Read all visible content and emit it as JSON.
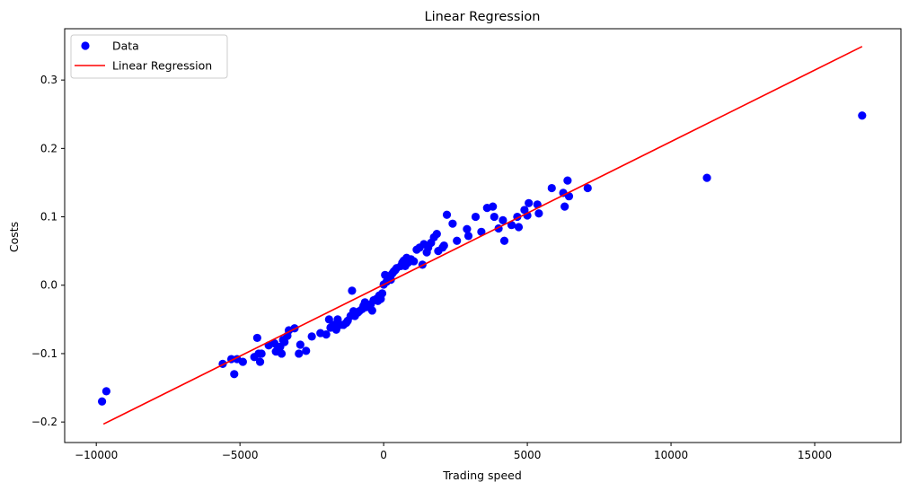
{
  "chart_data": {
    "type": "scatter",
    "title": "Linear Regression",
    "xlabel": "Trading speed",
    "ylabel": "Costs",
    "xlim": [
      -11100,
      18000
    ],
    "ylim": [
      -0.23,
      0.375
    ],
    "xticks": [
      -10000,
      -5000,
      0,
      5000,
      10000,
      15000
    ],
    "xtick_labels": [
      "−10000",
      "−5000",
      "0",
      "5000",
      "10000",
      "15000"
    ],
    "yticks": [
      -0.2,
      -0.1,
      0.0,
      0.1,
      0.2,
      0.3
    ],
    "ytick_labels": [
      "−0.2",
      "−0.1",
      "0.0",
      "0.1",
      "0.2",
      "0.3"
    ],
    "grid": false,
    "legend": {
      "position": "top-left",
      "entries": [
        {
          "label": "Data",
          "kind": "marker",
          "color": "#0000ff"
        },
        {
          "label": "Linear Regression",
          "kind": "line",
          "color": "#ff0000"
        }
      ]
    },
    "series": [
      {
        "name": "Data",
        "kind": "scatter",
        "color": "#0000ff",
        "points": [
          [
            -9800,
            -0.17
          ],
          [
            -9650,
            -0.155
          ],
          [
            -5600,
            -0.115
          ],
          [
            -5300,
            -0.108
          ],
          [
            -5200,
            -0.13
          ],
          [
            -5100,
            -0.108
          ],
          [
            -4900,
            -0.112
          ],
          [
            -4500,
            -0.105
          ],
          [
            -4350,
            -0.1
          ],
          [
            -4400,
            -0.077
          ],
          [
            -4300,
            -0.112
          ],
          [
            -4250,
            -0.1
          ],
          [
            -4000,
            -0.088
          ],
          [
            -3800,
            -0.085
          ],
          [
            -3750,
            -0.097
          ],
          [
            -3700,
            -0.095
          ],
          [
            -3600,
            -0.09
          ],
          [
            -3550,
            -0.1
          ],
          [
            -3500,
            -0.08
          ],
          [
            -3450,
            -0.083
          ],
          [
            -3350,
            -0.074
          ],
          [
            -3300,
            -0.066
          ],
          [
            -3100,
            -0.063
          ],
          [
            -2950,
            -0.1
          ],
          [
            -2900,
            -0.087
          ],
          [
            -2700,
            -0.096
          ],
          [
            -2500,
            -0.075
          ],
          [
            -2200,
            -0.07
          ],
          [
            -2000,
            -0.072
          ],
          [
            -1900,
            -0.05
          ],
          [
            -1850,
            -0.062
          ],
          [
            -1750,
            -0.058
          ],
          [
            -1650,
            -0.065
          ],
          [
            -1600,
            -0.05
          ],
          [
            -1500,
            -0.058
          ],
          [
            -1400,
            -0.058
          ],
          [
            -1300,
            -0.055
          ],
          [
            -1250,
            -0.052
          ],
          [
            -1150,
            -0.045
          ],
          [
            -1100,
            -0.008
          ],
          [
            -1050,
            -0.038
          ],
          [
            -1000,
            -0.045
          ],
          [
            -900,
            -0.04
          ],
          [
            -850,
            -0.038
          ],
          [
            -750,
            -0.035
          ],
          [
            -700,
            -0.03
          ],
          [
            -650,
            -0.025
          ],
          [
            -600,
            -0.032
          ],
          [
            -500,
            -0.03
          ],
          [
            -450,
            -0.028
          ],
          [
            -400,
            -0.037
          ],
          [
            -350,
            -0.022
          ],
          [
            -250,
            -0.02
          ],
          [
            -200,
            -0.023
          ],
          [
            -150,
            -0.015
          ],
          [
            -100,
            -0.02
          ],
          [
            -50,
            -0.012
          ],
          [
            0,
            0.001
          ],
          [
            50,
            0.015
          ],
          [
            100,
            0.005
          ],
          [
            150,
            0.013
          ],
          [
            200,
            0.012
          ],
          [
            250,
            0.008
          ],
          [
            300,
            0.017
          ],
          [
            350,
            0.02
          ],
          [
            400,
            0.022
          ],
          [
            450,
            0.025
          ],
          [
            600,
            0.028
          ],
          [
            650,
            0.033
          ],
          [
            700,
            0.036
          ],
          [
            750,
            0.028
          ],
          [
            800,
            0.04
          ],
          [
            850,
            0.033
          ],
          [
            950,
            0.038
          ],
          [
            1050,
            0.035
          ],
          [
            1150,
            0.052
          ],
          [
            1250,
            0.055
          ],
          [
            1350,
            0.03
          ],
          [
            1400,
            0.06
          ],
          [
            1500,
            0.048
          ],
          [
            1550,
            0.055
          ],
          [
            1650,
            0.062
          ],
          [
            1750,
            0.07
          ],
          [
            1850,
            0.075
          ],
          [
            1900,
            0.05
          ],
          [
            2050,
            0.055
          ],
          [
            2100,
            0.058
          ],
          [
            2200,
            0.103
          ],
          [
            2400,
            0.09
          ],
          [
            2550,
            0.065
          ],
          [
            2900,
            0.082
          ],
          [
            2950,
            0.072
          ],
          [
            3200,
            0.1
          ],
          [
            3400,
            0.078
          ],
          [
            3600,
            0.113
          ],
          [
            3800,
            0.115
          ],
          [
            3850,
            0.1
          ],
          [
            4000,
            0.083
          ],
          [
            4150,
            0.095
          ],
          [
            4200,
            0.065
          ],
          [
            4450,
            0.088
          ],
          [
            4650,
            0.1
          ],
          [
            4700,
            0.085
          ],
          [
            4900,
            0.11
          ],
          [
            5000,
            0.102
          ],
          [
            5050,
            0.12
          ],
          [
            5350,
            0.118
          ],
          [
            5400,
            0.105
          ],
          [
            5850,
            0.142
          ],
          [
            6250,
            0.135
          ],
          [
            6300,
            0.115
          ],
          [
            6400,
            0.153
          ],
          [
            6450,
            0.13
          ],
          [
            7100,
            0.142
          ],
          [
            11250,
            0.157
          ],
          [
            16650,
            0.248
          ]
        ]
      },
      {
        "name": "Linear Regression",
        "kind": "line",
        "color": "#ff0000",
        "x": [
          -9750,
          16650
        ],
        "y": [
          -0.203,
          0.349
        ]
      }
    ]
  }
}
